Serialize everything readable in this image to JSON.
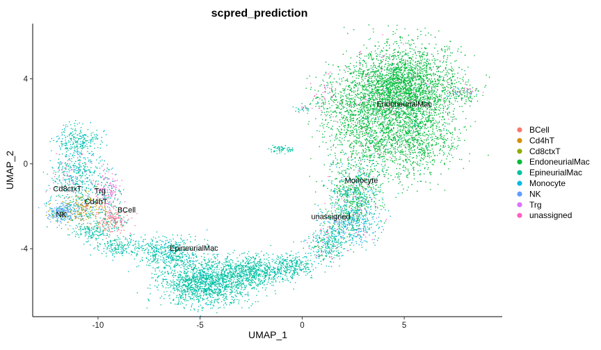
{
  "chart_data": {
    "type": "scatter",
    "title": "scpred_prediction",
    "xlabel": "UMAP_1",
    "ylabel": "UMAP_2",
    "xlim": [
      -13.2,
      9.8
    ],
    "ylim": [
      -7.2,
      6.6
    ],
    "x_ticks": [
      -10,
      -5,
      0,
      5
    ],
    "y_ticks": [
      -4,
      0,
      4
    ],
    "x_tick_labels": [
      "-10",
      "-5",
      "0",
      "5"
    ],
    "y_tick_labels": [
      "-4",
      "0",
      "4"
    ],
    "grid": false,
    "legend_position": "right",
    "series": [
      {
        "name": "BCell",
        "color": "#F8766D"
      },
      {
        "name": "Cd4hT",
        "color": "#D39200"
      },
      {
        "name": "Cd8ctxT",
        "color": "#93AA00"
      },
      {
        "name": "EndoneurialMac",
        "color": "#00BA38"
      },
      {
        "name": "EpineurialMac",
        "color": "#00C19F"
      },
      {
        "name": "Monocyte",
        "color": "#00B9E3"
      },
      {
        "name": "NK",
        "color": "#619CFF"
      },
      {
        "name": "Trg",
        "color": "#DB72FB"
      },
      {
        "name": "unassigned",
        "color": "#FF61C3"
      }
    ],
    "cluster_labels": [
      {
        "text": "EndoneurialMac",
        "x": 5.0,
        "y": 2.7
      },
      {
        "text": "Monocyte",
        "x": 2.9,
        "y": -0.9
      },
      {
        "text": "unassigned",
        "x": 1.4,
        "y": -2.6
      },
      {
        "text": "EpineurialMac",
        "x": -5.3,
        "y": -4.1
      },
      {
        "text": "Cd8ctxT",
        "x": -11.5,
        "y": -1.3
      },
      {
        "text": "Trg",
        "x": -9.9,
        "y": -1.4
      },
      {
        "text": "Cd4hT",
        "x": -10.1,
        "y": -1.9
      },
      {
        "text": "BCell",
        "x": -8.6,
        "y": -2.3
      },
      {
        "text": "NK",
        "x": -11.8,
        "y": -2.5
      }
    ]
  }
}
